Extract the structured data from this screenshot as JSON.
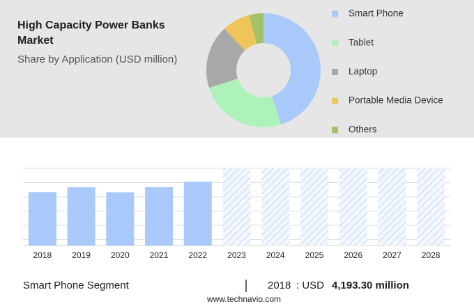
{
  "title_lines": [
    "High Capacity Power Banks",
    "Market"
  ],
  "subtitle": "Share by Application (USD million)",
  "chart_data": [
    {
      "type": "donut",
      "categories": [
        "Smart Phone",
        "Tablet",
        "Laptop",
        "Portable Media Device",
        "Others"
      ],
      "values": [
        45,
        25,
        18,
        8,
        4
      ],
      "colors": [
        "#a9c9fb",
        "#acf2b9",
        "#a8a8a8",
        "#eec55a",
        "#a4c266"
      ]
    },
    {
      "type": "bar",
      "categories": [
        "2018",
        "2019",
        "2020",
        "2021",
        "2022",
        "2023",
        "2024",
        "2025",
        "2026",
        "2027",
        "2028"
      ],
      "values": [
        4193.3,
        4574,
        4180,
        4580,
        5010,
        null,
        null,
        null,
        null,
        null,
        null
      ],
      "value_labels": [
        "4,193.30 million",
        null,
        null,
        null,
        null,
        null,
        null,
        null,
        null,
        null,
        null
      ],
      "color": "#a9c9fb"
    }
  ],
  "footer": {
    "segment": "Smart Phone Segment",
    "currency": ": USD"
  },
  "source": "www.technavio.com"
}
